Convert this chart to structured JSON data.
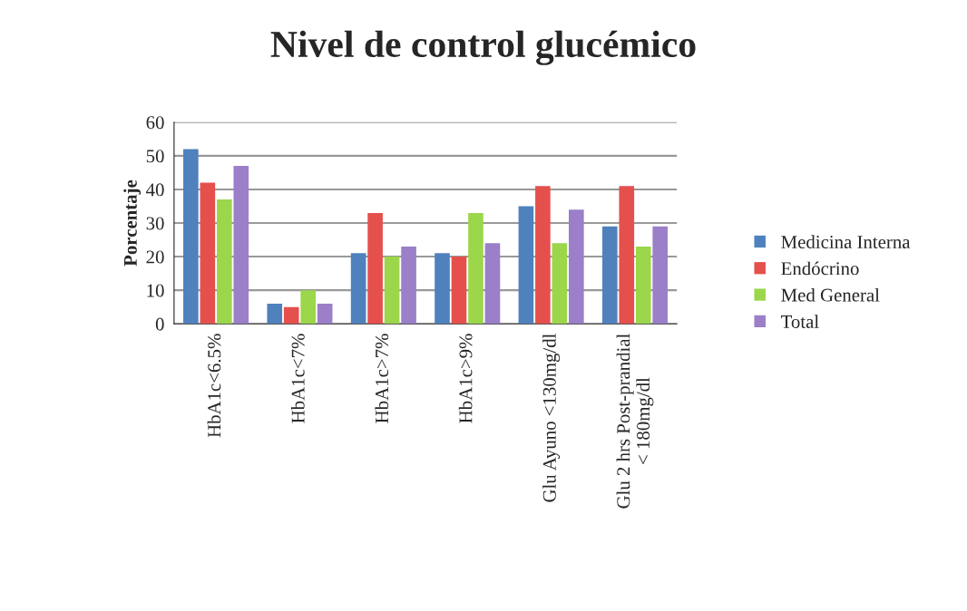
{
  "chart_data": {
    "type": "bar",
    "title": "Nivel de control glucémico",
    "ylabel": "Porcentaje",
    "categories": [
      "HbA1c<6.5%",
      "HbA1c<7%",
      "HbA1c>7%",
      "HbA1c>9%",
      "Glu Ayuno <130mg/dl",
      "Glu 2 hrs Post-prandial\n< 180mg/dl"
    ],
    "series": [
      {
        "name": "Medicina Interna",
        "color": "#4f81bd",
        "values": [
          52,
          6,
          21,
          21,
          35,
          29
        ]
      },
      {
        "name": "Endócrino",
        "color": "#e5504c",
        "values": [
          42,
          5,
          33,
          20,
          41,
          41
        ]
      },
      {
        "name": "Med General",
        "color": "#9bd64b",
        "values": [
          37,
          10,
          20,
          33,
          24,
          23
        ]
      },
      {
        "name": "Total",
        "color": "#9b7fc8",
        "values": [
          47,
          6,
          23,
          24,
          34,
          29
        ]
      }
    ],
    "ylim": [
      0,
      60
    ],
    "yticks": [
      0,
      10,
      20,
      30,
      40,
      50,
      60
    ],
    "grid": "y",
    "legend": "right"
  }
}
